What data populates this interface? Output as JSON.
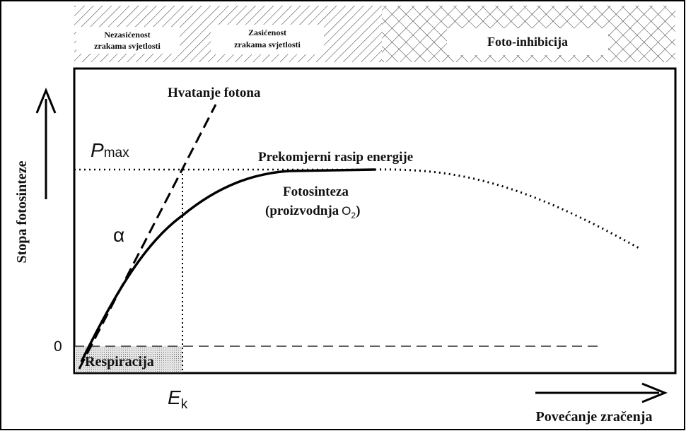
{
  "header_bands": [
    {
      "lines": [
        "Nezasićenost",
        "zrakama svjetlosti"
      ]
    },
    {
      "lines": [
        "Zasićenost",
        "zrakama svjetlosti"
      ]
    },
    {
      "lines": [
        "Foto-inhibicija"
      ]
    }
  ],
  "labels": {
    "photon_capture": "Hvatanje fotona",
    "pmax": {
      "symbol": "P",
      "subscript": "max"
    },
    "excess_dissipation": "Prekomjerni rasip energije",
    "photosynthesis": "Fotosinteza",
    "production": {
      "text": "(proizvodnja",
      "symbol": "O",
      "subscript": "2",
      "close": ")"
    },
    "alpha": "α",
    "zero": "0",
    "respiration": "Respiracija",
    "ek": {
      "symbol": "E",
      "subscript": "k"
    },
    "y_axis": "Stopa fotosinteze",
    "x_axis": "Povećanje zračenja"
  }
}
